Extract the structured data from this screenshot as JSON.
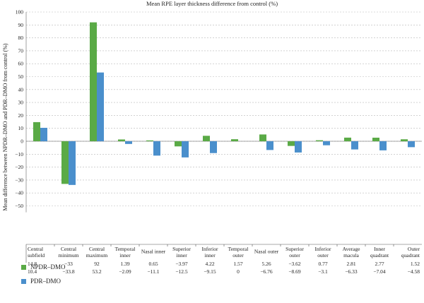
{
  "chart_data": {
    "type": "bar",
    "title": "Mean RPE layer thickness difference from control (%)",
    "ylabel": "Mean difference between NPDR–DMO and PDR–DMO from control (%)",
    "xlabel": "",
    "ylim": [
      -55,
      100
    ],
    "yticks": [
      100,
      90,
      80,
      70,
      60,
      50,
      40,
      30,
      20,
      10,
      0,
      -10,
      -20,
      -30,
      -40,
      -50
    ],
    "grid": "horizontal dashed",
    "categories": [
      [
        "Central",
        "subfield"
      ],
      [
        "Central",
        "minimum"
      ],
      [
        "Central",
        "maximum"
      ],
      [
        "Temporal",
        "inner"
      ],
      [
        "Nasal inner"
      ],
      [
        "Superior",
        "inner"
      ],
      [
        "Inferior",
        "inner"
      ],
      [
        "Temporal",
        "outer"
      ],
      [
        "Nasal outer"
      ],
      [
        "Superior",
        "outer"
      ],
      [
        "Inferior",
        "outer"
      ],
      [
        "Average",
        "macula"
      ],
      [
        "Inner",
        "quadrant"
      ],
      [
        "Outer",
        "quadrant"
      ]
    ],
    "series": [
      {
        "name": "NPDR–DMO",
        "color": "#5aaa46",
        "values": [
          14.8,
          -33,
          92,
          1.39,
          0.65,
          -3.97,
          4.22,
          1.57,
          5.26,
          -3.62,
          0.77,
          2.81,
          2.77,
          1.52
        ],
        "labels": [
          "14.8",
          "−33",
          "92",
          "1.39",
          "0.65",
          "−3.97",
          "4.22",
          "1.57",
          "5.26",
          "−3.62",
          "0.77",
          "2.81",
          "2.77",
          "1.52"
        ]
      },
      {
        "name": "PDR–DMO",
        "color": "#4a8fcc",
        "values": [
          10.4,
          -33.8,
          53.2,
          -2.09,
          -11.1,
          -12.5,
          -9.15,
          0,
          -6.76,
          -8.69,
          -3.1,
          -6.33,
          -7.04,
          -4.58
        ],
        "labels": [
          "10.4",
          "−33.8",
          "53.2",
          "−2.09",
          "−11.1",
          "−12.5",
          "−9.15",
          "0",
          "−6.76",
          "−8.69",
          "−3.1",
          "−6.33",
          "−7.04",
          "−4.58"
        ]
      }
    ],
    "legend": "bottom-left"
  }
}
